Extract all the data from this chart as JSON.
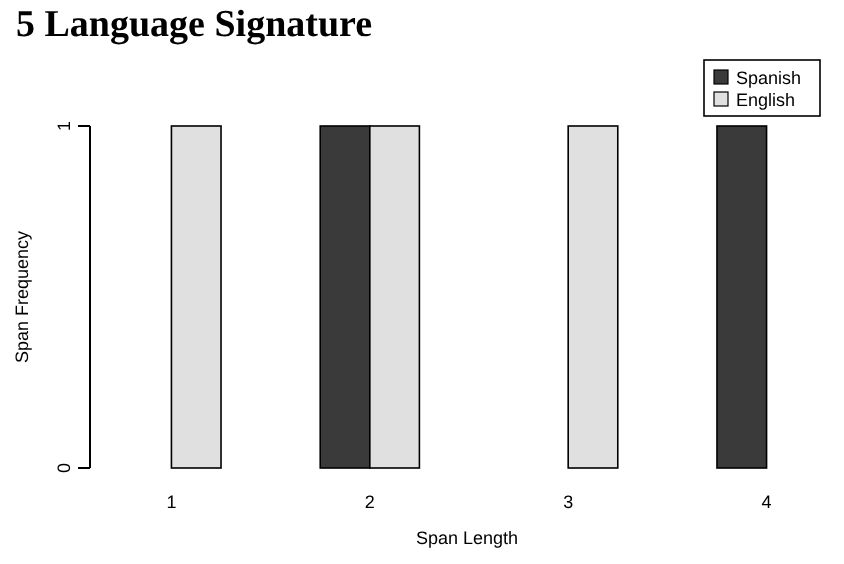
{
  "chart_data": {
    "type": "bar",
    "title": "5 Language Signature",
    "xlabel": "Span Length",
    "ylabel": "Span Frequency",
    "categories": [
      "1",
      "2",
      "3",
      "4"
    ],
    "series": [
      {
        "name": "Spanish",
        "color": "#3a3a3a",
        "values": [
          0,
          1,
          0,
          1
        ]
      },
      {
        "name": "English",
        "color": "#e0e0e0",
        "values": [
          1,
          1,
          1,
          0
        ]
      }
    ],
    "ylim": [
      0,
      1
    ],
    "yticks": [
      0,
      1
    ],
    "grid": false,
    "legend": "top right"
  }
}
